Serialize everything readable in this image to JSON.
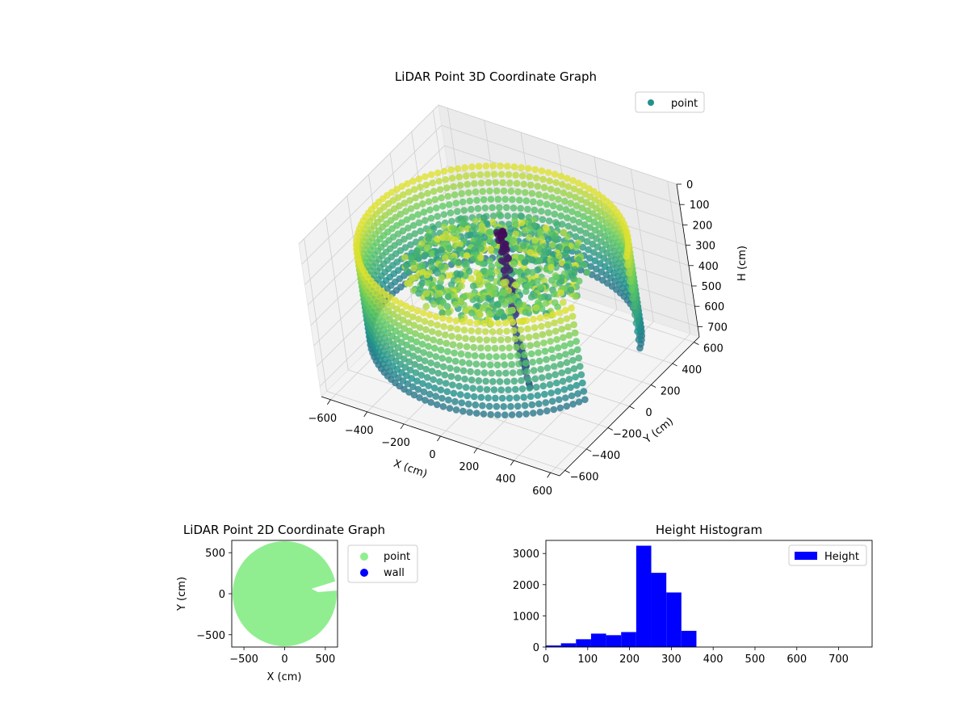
{
  "chart_data": [
    {
      "type": "scatter",
      "title": "LiDAR Point 3D Coordinate Graph",
      "xlabel": "X (cm)",
      "ylabel": "Y (cm)",
      "zlabel": "H (cm)",
      "x_ticks": [
        "−600",
        "−400",
        "−200",
        "0",
        "200",
        "400",
        "600"
      ],
      "y_ticks": [
        "−600",
        "−400",
        "−200",
        "0",
        "200",
        "400",
        "600"
      ],
      "z_ticks": [
        "0",
        "100",
        "200",
        "300",
        "400",
        "500",
        "600",
        "700"
      ],
      "xlim": [
        -650,
        650
      ],
      "ylim": [
        -650,
        650
      ],
      "zlim": [
        0,
        750
      ],
      "z_axis_inverted": true,
      "legend": [
        {
          "label": "point",
          "color": "#21918c"
        }
      ],
      "legend_position": "top-right",
      "colormap": "viridis",
      "grid": true,
      "groups": [
        {
          "name": "wall ring",
          "radius": 640,
          "h_range": [
            150,
            600
          ]
        },
        {
          "name": "floor",
          "radius": 430,
          "h_range": [
            230,
            300
          ]
        },
        {
          "name": "person",
          "x": 120,
          "y": -80,
          "h_range": [
            0,
            420
          ]
        },
        {
          "name": "object row",
          "from": [
            100,
            -70
          ],
          "to": [
            380,
            -400
          ],
          "h": [
            430,
            560
          ]
        }
      ]
    },
    {
      "type": "scatter",
      "title": "LiDAR Point 2D Coordinate Graph",
      "xlabel": "X (cm)",
      "ylabel": "Y (cm)",
      "x_ticks": [
        "−500",
        "0",
        "500"
      ],
      "y_ticks": [
        "−500",
        "0",
        "500"
      ],
      "xlim": [
        -650,
        650
      ],
      "ylim": [
        -650,
        650
      ],
      "legend": [
        {
          "label": "point",
          "color": "#90ee90"
        },
        {
          "label": "wall",
          "color": "#0000ff"
        }
      ],
      "legend_position": "outside right",
      "disk_radius": 640,
      "notch": {
        "x": [
          330,
          650
        ],
        "y": [
          40,
          160
        ]
      }
    },
    {
      "type": "bar",
      "title": "Height Histogram",
      "x_ticks": [
        "0",
        "100",
        "200",
        "300",
        "400",
        "500",
        "600",
        "700"
      ],
      "y_ticks": [
        "0",
        "1000",
        "2000",
        "3000"
      ],
      "xlim": [
        0,
        780
      ],
      "ylim": [
        0,
        3420
      ],
      "bin_width": 36,
      "bin_edges": [
        0,
        36,
        72,
        108,
        144,
        180,
        216,
        252,
        288,
        324,
        360,
        396,
        432,
        468,
        504,
        540,
        576,
        612,
        648,
        684,
        720
      ],
      "values": [
        50,
        120,
        250,
        430,
        380,
        480,
        3250,
        2380,
        1750,
        520,
        0,
        0,
        0,
        0,
        0,
        0,
        0,
        0,
        0,
        0
      ],
      "series": [
        {
          "name": "Height",
          "color": "#0000ff"
        }
      ],
      "legend_position": "top-right"
    }
  ]
}
